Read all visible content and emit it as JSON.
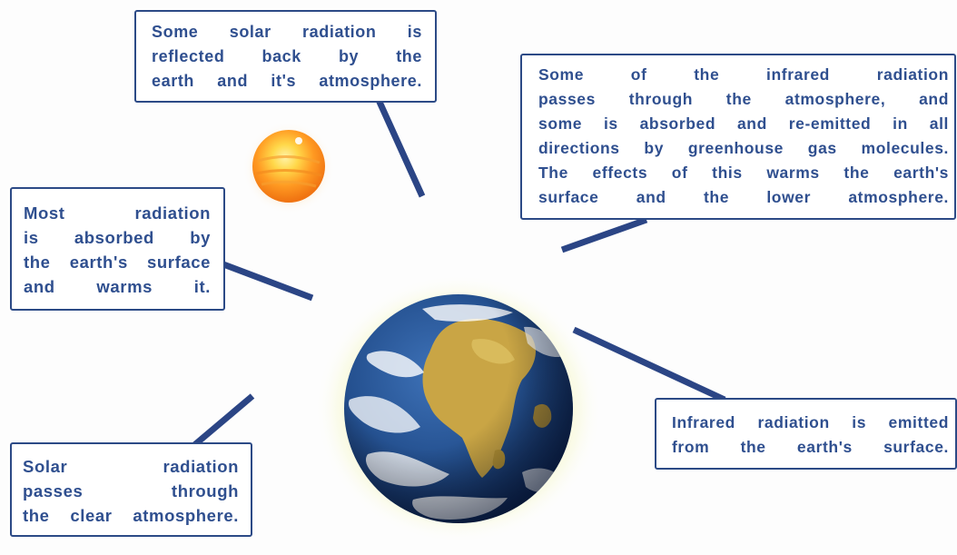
{
  "callouts": {
    "reflected": {
      "lines": [
        "Some solar radiation is",
        "reflected back by the",
        "earth and it's atmosphere."
      ]
    },
    "absorbed": {
      "lines": [
        "Most radiation",
        "is absorbed by",
        "the earth's surface",
        "and warms it."
      ]
    },
    "passes": {
      "lines": [
        "Solar radiation",
        "passes through",
        "the clear atmosphere."
      ]
    },
    "infrared_greenhouse": {
      "lines": [
        "Some of the infrared radiation",
        "passes through the atmosphere, and",
        "some is absorbed and re-emitted in all",
        "directions by greenhouse gas molecules.",
        "The effects of this warms the earth's",
        "surface and the lower atmosphere."
      ]
    },
    "infrared_emitted": {
      "lines": [
        "Infrared radiation is emitted",
        "from the earth's surface."
      ]
    }
  },
  "colors": {
    "callout_border": "#2c4a86",
    "callout_text": "#2f4f8f",
    "connector": "#2b4585",
    "sun_core": "#ff8c1a",
    "ocean": "#1f3f7a",
    "land": "#c9a545"
  }
}
